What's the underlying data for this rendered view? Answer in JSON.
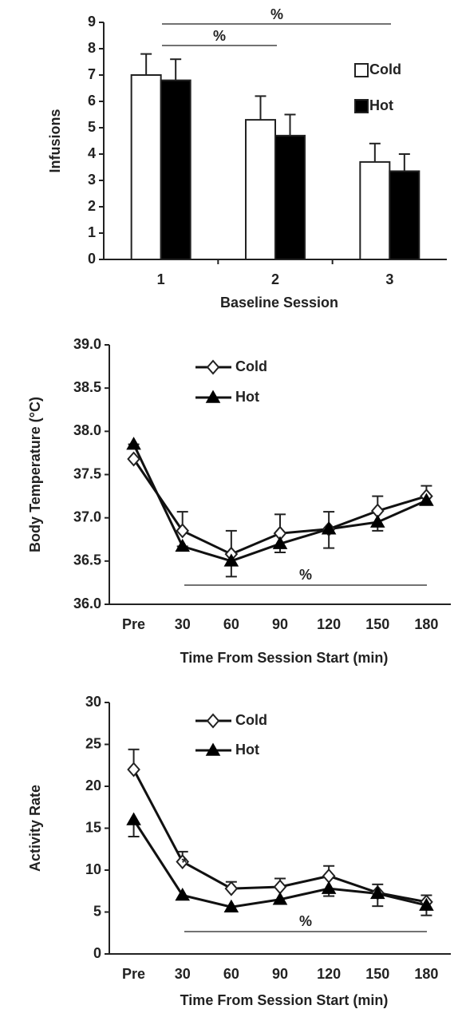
{
  "chart_data": [
    {
      "type": "bar",
      "y_label": "Infusions",
      "x_label": "Baseline Session",
      "categories": [
        "1",
        "2",
        "3"
      ],
      "series": [
        {
          "name": "Cold",
          "color": "#ffffff",
          "values": [
            7.0,
            5.3,
            3.7
          ],
          "errors": [
            0.8,
            0.9,
            0.7
          ],
          "error_direction": "up"
        },
        {
          "name": "Hot",
          "color": "#000000",
          "values": [
            6.8,
            4.7,
            3.35
          ],
          "errors": [
            0.8,
            0.8,
            0.65
          ],
          "error_direction": "up"
        }
      ],
      "ylim": [
        0,
        9
      ],
      "yticks": [
        0,
        1,
        2,
        3,
        4,
        5,
        6,
        7,
        8,
        9
      ],
      "annotations": [
        "%",
        "%"
      ]
    },
    {
      "type": "line",
      "y_label": "Body Temperature (°C)",
      "x_label": "Time From Session Start (min)",
      "categories": [
        "Pre",
        "30",
        "60",
        "90",
        "120",
        "150",
        "180"
      ],
      "series": [
        {
          "name": "Cold",
          "color": "#ffffff",
          "marker": "diamond",
          "values": [
            37.68,
            36.85,
            36.58,
            36.82,
            36.87,
            37.08,
            37.25
          ],
          "errors": [
            0,
            0.22,
            0.27,
            0.22,
            0.2,
            0.17,
            0.12
          ],
          "error_direction": "up"
        },
        {
          "name": "Hot",
          "color": "#000000",
          "marker": "triangle",
          "values": [
            37.85,
            36.67,
            36.5,
            36.7,
            36.87,
            36.95,
            37.2
          ],
          "errors": [
            0,
            0,
            0.18,
            0.1,
            0.22,
            0.1,
            0.05
          ],
          "error_direction": "down"
        }
      ],
      "ylim": [
        36,
        39
      ],
      "yticks": [
        {
          "value": 36,
          "label": "36.0"
        },
        {
          "value": 36.5,
          "label": "36.5"
        },
        {
          "value": 37,
          "label": "37.0"
        },
        {
          "value": 37.5,
          "label": "37.5"
        },
        {
          "value": 38,
          "label": "38.0"
        },
        {
          "value": 38.5,
          "label": "38.5"
        },
        {
          "value": 39,
          "label": "39.0"
        }
      ],
      "annotations": [
        "%"
      ]
    },
    {
      "type": "line",
      "y_label": "Activity Rate",
      "x_label": "Time From Session Start (min)",
      "categories": [
        "Pre",
        "30",
        "60",
        "90",
        "120",
        "150",
        "180"
      ],
      "series": [
        {
          "name": "Cold",
          "color": "#ffffff",
          "marker": "diamond",
          "values": [
            22,
            11,
            7.8,
            8,
            9.3,
            7.3,
            6.2
          ],
          "errors": [
            2.4,
            1.2,
            0.8,
            1.0,
            1.2,
            1.0,
            0.8
          ],
          "error_direction": "up"
        },
        {
          "name": "Hot",
          "color": "#000000",
          "marker": "triangle",
          "values": [
            16,
            7,
            5.6,
            6.5,
            7.8,
            7.2,
            5.8
          ],
          "errors": [
            2.0,
            0.5,
            0.5,
            0.5,
            0.9,
            1.5,
            1.2
          ],
          "error_direction": "down"
        }
      ],
      "ylim": [
        0,
        30
      ],
      "yticks": [
        0,
        5,
        10,
        15,
        20,
        25,
        30
      ],
      "annotations": [
        "*",
        "%"
      ]
    }
  ]
}
